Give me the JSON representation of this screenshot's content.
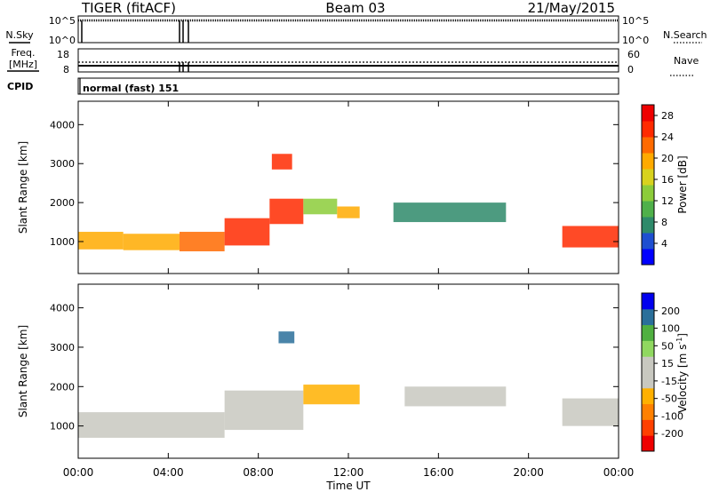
{
  "header": {
    "radar": "TIGER (fitACF)",
    "beam": "Beam 03",
    "date": "21/May/2015"
  },
  "top_panels": {
    "nsky_label": "N.Sky",
    "nsearch_label": "N.Search",
    "freq_label_1": "Freq.",
    "freq_label_2": "[MHz]",
    "nave_label": "Nave",
    "cpid_label": "CPID",
    "nsky_ticks": [
      "10^5",
      "10^0"
    ],
    "nsearch_ticks": [
      "10^5",
      "10^0"
    ],
    "freq_ticks": [
      "18",
      "8"
    ],
    "nave_ticks": [
      "60",
      "0"
    ],
    "cpid_text": "normal (fast) 151"
  },
  "chart_data": [
    {
      "type": "heatmap",
      "name": "power-panel",
      "ylabel": "Slant Range [km]",
      "yticks": [
        "4000",
        "3000",
        "2000",
        "1000"
      ],
      "ylim": [
        180,
        4600
      ],
      "xlim": [
        0,
        24
      ],
      "colorbar": {
        "label": "Power [dB]",
        "ticks": [
          "28",
          "24",
          "20",
          "16",
          "12",
          "8",
          "4"
        ],
        "range": [
          0,
          30
        ],
        "colors": [
          "#0000ff",
          "#1e4fd0",
          "#2e8a6a",
          "#4fb04a",
          "#8ccc3a",
          "#d8d21e",
          "#ffaa00",
          "#ff6a00",
          "#ff2a00",
          "#ee0000"
        ]
      },
      "features": [
        {
          "t0": 0.0,
          "t1": 2.0,
          "r0": 800,
          "r1": 1250,
          "level": 18
        },
        {
          "t0": 2.0,
          "t1": 4.5,
          "r0": 780,
          "r1": 1200,
          "level": 20
        },
        {
          "t0": 4.5,
          "t1": 6.5,
          "r0": 750,
          "r1": 1250,
          "level": 22
        },
        {
          "t0": 6.5,
          "t1": 8.5,
          "r0": 900,
          "r1": 1600,
          "level": 24
        },
        {
          "t0": 8.5,
          "t1": 10.0,
          "r0": 1450,
          "r1": 2100,
          "level": 24
        },
        {
          "t0": 10.0,
          "t1": 11.5,
          "r0": 1700,
          "r1": 2100,
          "level": 14
        },
        {
          "t0": 11.5,
          "t1": 12.5,
          "r0": 1600,
          "r1": 1900,
          "level": 20
        },
        {
          "t0": 14.0,
          "t1": 19.0,
          "r0": 1500,
          "r1": 2000,
          "level": 8
        },
        {
          "t0": 21.5,
          "t1": 24.0,
          "r0": 850,
          "r1": 1400,
          "level": 24
        },
        {
          "t0": 8.6,
          "t1": 9.5,
          "r0": 2850,
          "r1": 3250,
          "level": 24
        }
      ]
    },
    {
      "type": "heatmap",
      "name": "velocity-panel",
      "ylabel": "Slant Range [km]",
      "yticks": [
        "4000",
        "3000",
        "2000",
        "1000"
      ],
      "ylim": [
        180,
        4600
      ],
      "xlim": [
        0,
        24
      ],
      "colorbar": {
        "label": "Velocity [m s",
        "label_sup": "-1",
        "label_end": "]",
        "ticks": [
          "200",
          "100",
          "50",
          "15",
          "-15",
          "-50",
          "-100",
          "-200"
        ],
        "range": [
          -250,
          250
        ],
        "colors": [
          "#ee0000",
          "#ff4000",
          "#ff8000",
          "#ffb000",
          "#c8c8c0",
          "#c8c8c0",
          "#90d860",
          "#50b040",
          "#2a6f9a",
          "#0000ee"
        ]
      },
      "features": [
        {
          "t0": 0.0,
          "t1": 6.5,
          "r0": 700,
          "r1": 1350,
          "level": 0
        },
        {
          "t0": 6.5,
          "t1": 10.0,
          "r0": 900,
          "r1": 1900,
          "level": 0
        },
        {
          "t0": 10.0,
          "t1": 12.5,
          "r0": 1550,
          "r1": 2050,
          "level": -80
        },
        {
          "t0": 8.9,
          "t1": 9.6,
          "r0": 3100,
          "r1": 3400,
          "level": 180
        },
        {
          "t0": 14.5,
          "t1": 19.0,
          "r0": 1500,
          "r1": 2000,
          "level": 0
        },
        {
          "t0": 21.5,
          "t1": 24.0,
          "r0": 1000,
          "r1": 1700,
          "level": 30
        }
      ]
    }
  ],
  "xaxis": {
    "label": "Time UT",
    "ticks": [
      "00:00",
      "04:00",
      "08:00",
      "12:00",
      "16:00",
      "20:00",
      "00:00"
    ],
    "tick_hours": [
      0,
      4,
      8,
      12,
      16,
      20,
      24
    ]
  }
}
